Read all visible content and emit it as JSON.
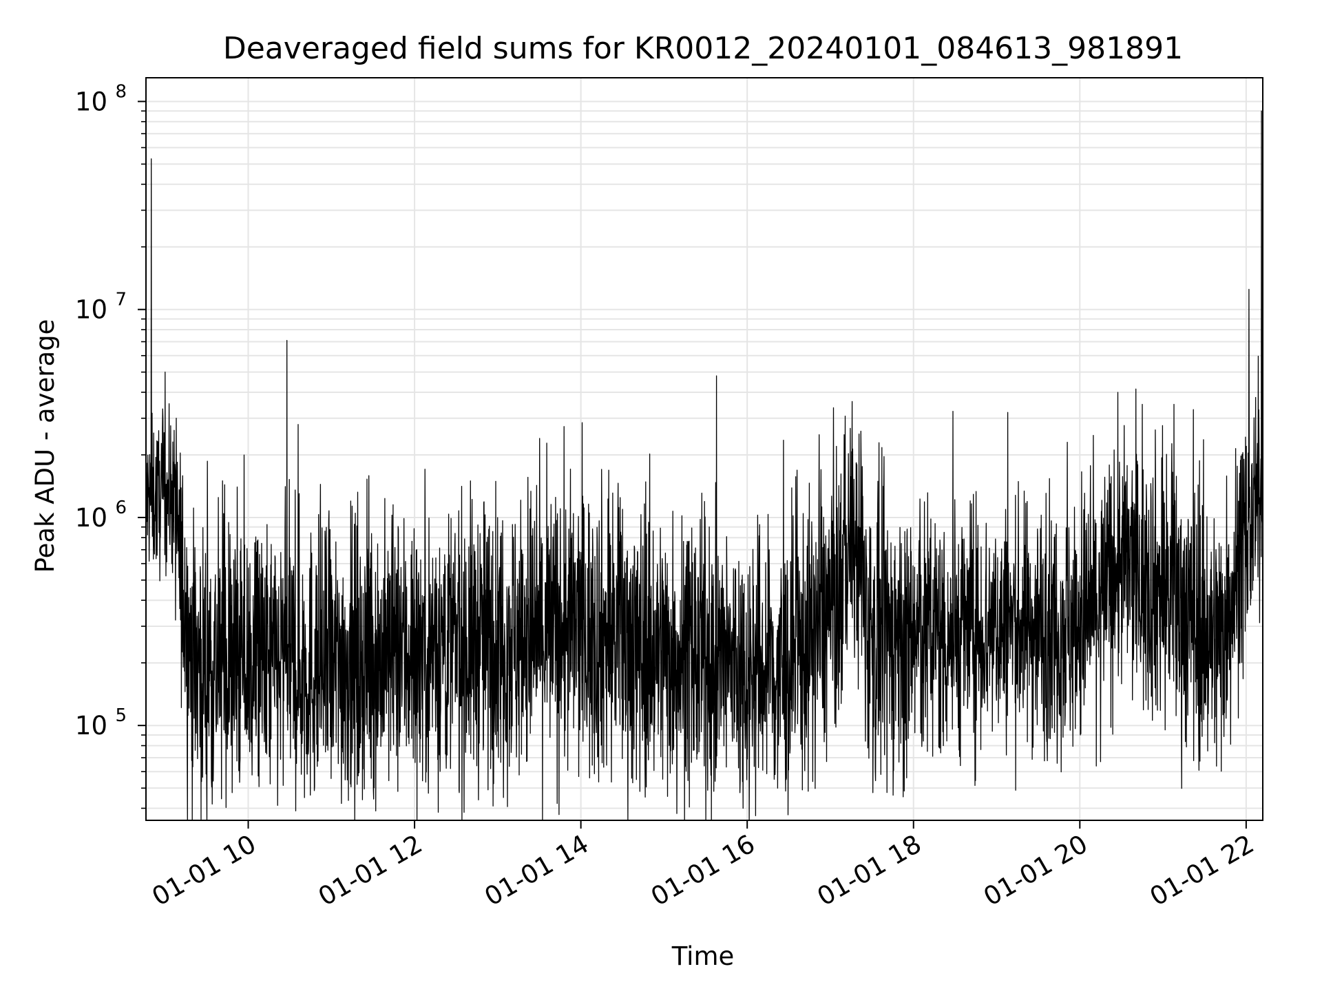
{
  "chart_data": {
    "type": "line",
    "title": "Deaveraged field sums for KR0012_20240101_084613_981891",
    "xlabel": "Time",
    "ylabel": "Peak ADU - average",
    "yscale": "log",
    "grid": true,
    "line_color": "#000000",
    "grid_color": "#e5e5e5",
    "xlim": [
      "2024-01-01 08:46:13",
      "2024-01-01 22:12:00"
    ],
    "ylim": [
      35000,
      130000000
    ],
    "x_ticks": [
      {
        "t": "2024-01-01 10:00",
        "label": "01-01 10"
      },
      {
        "t": "2024-01-01 12:00",
        "label": "01-01 12"
      },
      {
        "t": "2024-01-01 14:00",
        "label": "01-01 14"
      },
      {
        "t": "2024-01-01 16:00",
        "label": "01-01 16"
      },
      {
        "t": "2024-01-01 18:00",
        "label": "01-01 18"
      },
      {
        "t": "2024-01-01 20:00",
        "label": "01-01 20"
      },
      {
        "t": "2024-01-01 22:00",
        "label": "01-01 22"
      }
    ],
    "y_ticks": [
      {
        "value": 100000,
        "base": "10",
        "exp": "5"
      },
      {
        "value": 1000000,
        "base": "10",
        "exp": "6"
      },
      {
        "value": 10000000,
        "base": "10",
        "exp": "7"
      },
      {
        "value": 100000000,
        "base": "10",
        "exp": "8"
      }
    ],
    "series": [
      {
        "envelope_note": "approximate typical level (median) and spread of the dense trace across time",
        "level": [
          {
            "t": "2024-01-01 08:46",
            "median": 1200000,
            "spread": 0.18
          },
          {
            "t": "2024-01-01 09:05",
            "median": 1300000,
            "spread": 0.18
          },
          {
            "t": "2024-01-01 09:12",
            "median": 500000,
            "spread": 0.3
          },
          {
            "t": "2024-01-01 09:20",
            "median": 200000,
            "spread": 0.33
          },
          {
            "t": "2024-01-01 11:00",
            "median": 190000,
            "spread": 0.33
          },
          {
            "t": "2024-01-01 12:00",
            "median": 230000,
            "spread": 0.33
          },
          {
            "t": "2024-01-01 14:00",
            "median": 290000,
            "spread": 0.35
          },
          {
            "t": "2024-01-01 15:30",
            "median": 200000,
            "spread": 0.33
          },
          {
            "t": "2024-01-01 16:30",
            "median": 180000,
            "spread": 0.33
          },
          {
            "t": "2024-01-01 17:05",
            "median": 400000,
            "spread": 0.33
          },
          {
            "t": "2024-01-01 17:15",
            "median": 900000,
            "spread": 0.28
          },
          {
            "t": "2024-01-01 17:30",
            "median": 250000,
            "spread": 0.35
          },
          {
            "t": "2024-01-01 19:00",
            "median": 300000,
            "spread": 0.28
          },
          {
            "t": "2024-01-01 20:00",
            "median": 300000,
            "spread": 0.3
          },
          {
            "t": "2024-01-01 20:30",
            "median": 600000,
            "spread": 0.3
          },
          {
            "t": "2024-01-01 21:00",
            "median": 450000,
            "spread": 0.33
          },
          {
            "t": "2024-01-01 21:40",
            "median": 250000,
            "spread": 0.33
          },
          {
            "t": "2024-01-01 21:55",
            "median": 600000,
            "spread": 0.3
          },
          {
            "t": "2024-01-01 22:12",
            "median": 1300000,
            "spread": 0.2
          }
        ],
        "spikes": [
          {
            "t": "2024-01-01 08:50",
            "value": 53000000
          },
          {
            "t": "2024-01-01 09:00",
            "value": 5000000
          },
          {
            "t": "2024-01-01 09:08",
            "value": 3000000
          },
          {
            "t": "2024-01-01 10:28",
            "value": 7100000
          },
          {
            "t": "2024-01-01 10:36",
            "value": 2800000
          },
          {
            "t": "2024-01-01 11:14",
            "value": 1200000
          },
          {
            "t": "2024-01-01 14:40",
            "value": 1500000
          },
          {
            "t": "2024-01-01 16:52",
            "value": 2500000
          },
          {
            "t": "2024-01-01 17:10",
            "value": 2500000
          },
          {
            "t": "2024-01-01 17:22",
            "value": 2600000
          },
          {
            "t": "2024-01-01 19:08",
            "value": 3200000
          },
          {
            "t": "2024-01-01 19:51",
            "value": 2300000
          },
          {
            "t": "2024-01-01 20:45",
            "value": 3500000
          },
          {
            "t": "2024-01-01 21:08",
            "value": 3500000
          },
          {
            "t": "2024-01-01 21:22",
            "value": 3300000
          },
          {
            "t": "2024-01-01 22:02",
            "value": 12500000
          },
          {
            "t": "2024-01-01 22:11",
            "value": 90000000
          }
        ],
        "dips": [
          {
            "t": "2024-01-01 09:30",
            "value": 57000
          },
          {
            "t": "2024-01-01 14:40",
            "value": 55000
          },
          {
            "t": "2024-01-01 16:22",
            "value": 50000
          },
          {
            "t": "2024-01-01 17:55",
            "value": 56000
          },
          {
            "t": "2024-01-01 20:15",
            "value": 67000
          }
        ]
      }
    ]
  }
}
